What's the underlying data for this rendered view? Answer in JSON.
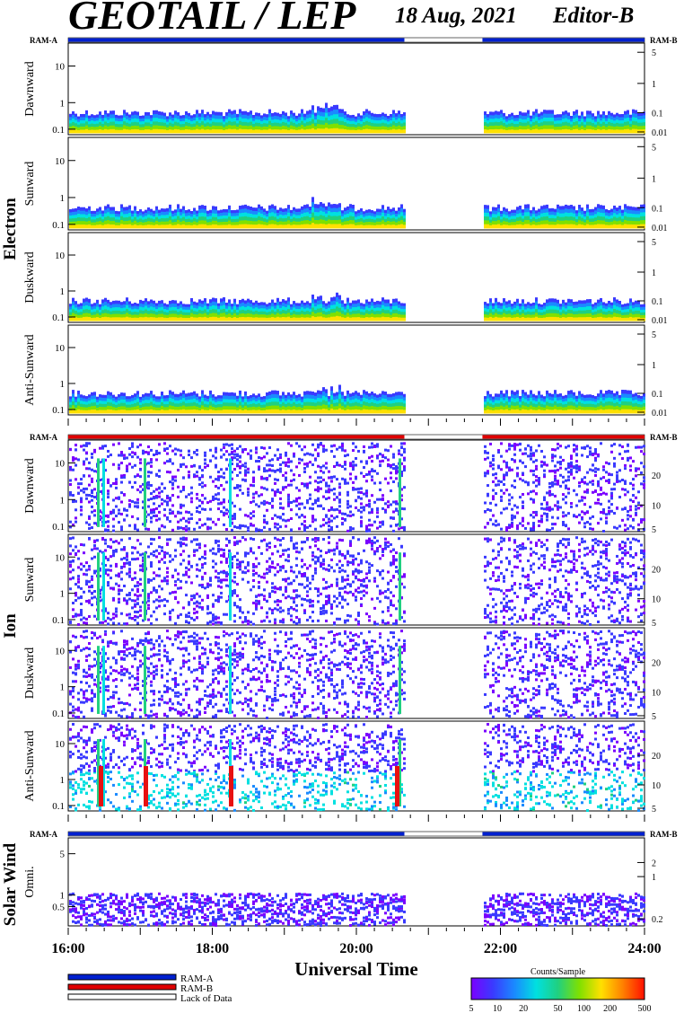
{
  "header": {
    "title": "GEOTAIL / LEP",
    "date": "18 Aug, 2021",
    "editor": "Editor-B"
  },
  "mode_bar": {
    "left_label": "RAM-A",
    "right_label": "RAM-B"
  },
  "groups": [
    {
      "label": "Electron"
    },
    {
      "label": "Ion"
    },
    {
      "label": "Solar Wind"
    }
  ],
  "chart_data": {
    "type": "heatmap",
    "x_range": [
      "16:00",
      "24:00"
    ],
    "x_ticks": [
      "16:00",
      "18:00",
      "20:00",
      "22:00",
      "24:00"
    ],
    "xlabel": "Universal Time",
    "data_gap": {
      "start": "20:40",
      "end": "21:45"
    },
    "colorbar": {
      "label": "Counts/Sample",
      "ticks": [
        "5",
        "10",
        "20",
        "50",
        "100",
        "200",
        "500"
      ],
      "stops": [
        "#7a00ff",
        "#3a3aff",
        "#1a8aff",
        "#00e0e0",
        "#20d080",
        "#80e000",
        "#ffe000",
        "#ff8000",
        "#ff1000"
      ]
    },
    "legend": [
      {
        "label": "RAM-A",
        "color": "#0020d0"
      },
      {
        "label": "RAM-B",
        "color": "#e00000"
      },
      {
        "label": "Lack of Data",
        "color": "#ffffff"
      }
    ],
    "panels": [
      {
        "group": "Electron",
        "label": "Dawnward",
        "left_ticks": [
          "10",
          "1",
          "0.1"
        ],
        "right_ticks": [
          "5",
          "1",
          "0.1",
          "0.01"
        ]
      },
      {
        "group": "Electron",
        "label": "Sunward",
        "left_ticks": [
          "10",
          "1",
          "0.1"
        ],
        "right_ticks": [
          "5",
          "1",
          "0.1",
          "0.01"
        ]
      },
      {
        "group": "Electron",
        "label": "Duskward",
        "left_ticks": [
          "10",
          "1",
          "0.1"
        ],
        "right_ticks": [
          "5",
          "1",
          "0.1",
          "0.01"
        ]
      },
      {
        "group": "Electron",
        "label": "Anti-Sunward",
        "left_ticks": [
          "10",
          "1",
          "0.1"
        ],
        "right_ticks": [
          "5",
          "1",
          "0.1",
          "0.01"
        ]
      },
      {
        "group": "Ion",
        "label": "Dawnward",
        "left_ticks": [
          "10",
          "1",
          "0.1"
        ],
        "right_ticks": [
          "20",
          "10",
          "5"
        ]
      },
      {
        "group": "Ion",
        "label": "Sunward",
        "left_ticks": [
          "10",
          "1",
          "0.1"
        ],
        "right_ticks": [
          "20",
          "10",
          "5"
        ]
      },
      {
        "group": "Ion",
        "label": "Duskward",
        "left_ticks": [
          "10",
          "1",
          "0.1"
        ],
        "right_ticks": [
          "20",
          "10",
          "5"
        ]
      },
      {
        "group": "Ion",
        "label": "Anti-Sunward",
        "left_ticks": [
          "10",
          "1",
          "0.1"
        ],
        "right_ticks": [
          "20",
          "10",
          "5"
        ]
      },
      {
        "group": "Solar Wind",
        "label": "Omni.",
        "left_ticks": [
          "5",
          "1",
          "0.5"
        ],
        "right_ticks": [
          "2",
          "1",
          "0.2"
        ]
      }
    ]
  }
}
